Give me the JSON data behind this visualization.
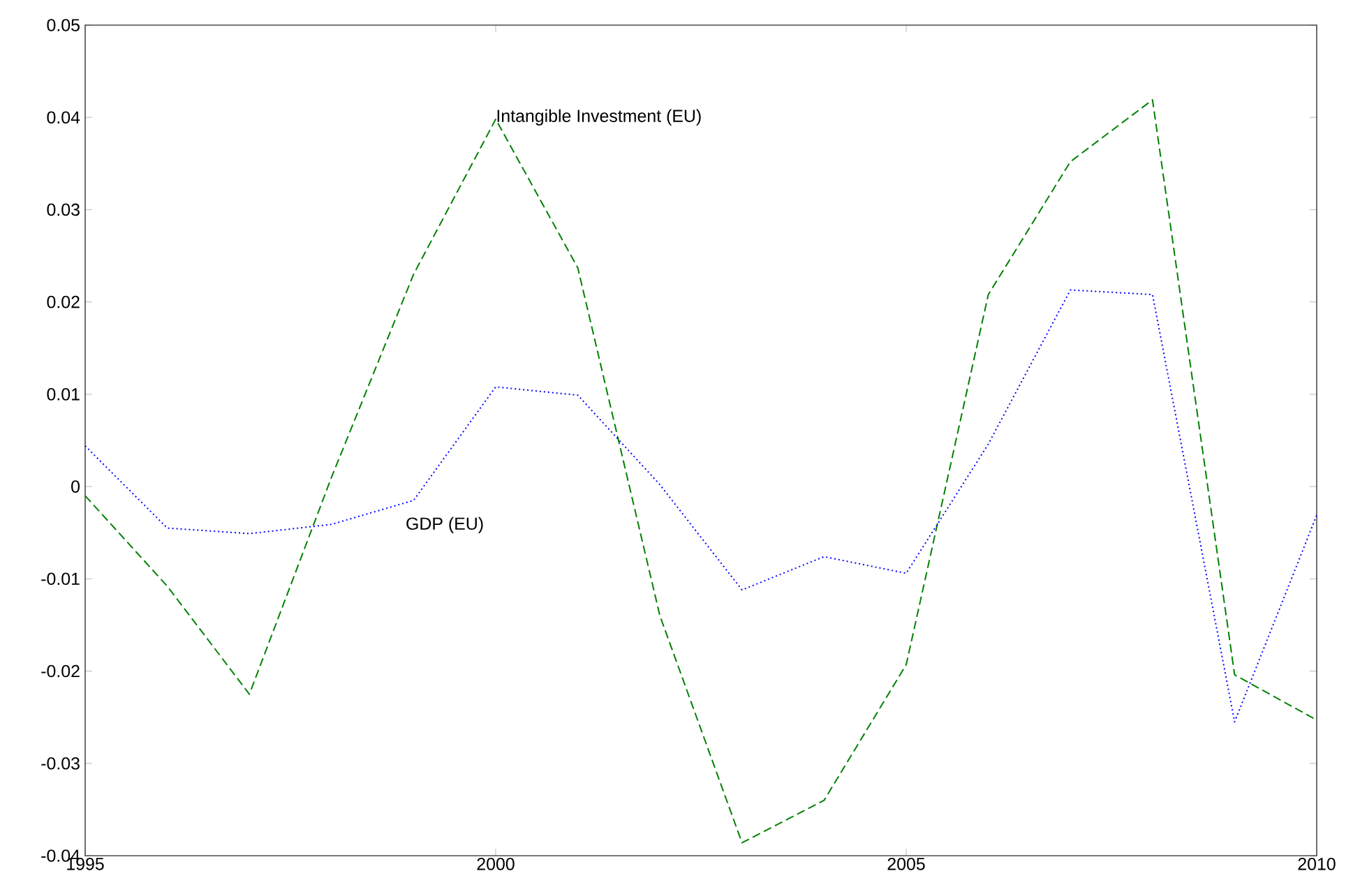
{
  "chart_data": {
    "type": "line",
    "x": [
      1995,
      1996,
      1997,
      1998,
      1999,
      2000,
      2001,
      2002,
      2003,
      2004,
      2005,
      2006,
      2007,
      2008,
      2009,
      2010
    ],
    "series": [
      {
        "color": "#008000",
        "line_style": "dashed",
        "values": [
          -0.001,
          -0.0108,
          -0.0225,
          0.001,
          0.023,
          0.0398,
          0.0237,
          -0.014,
          -0.0386,
          -0.034,
          -0.0193,
          0.0208,
          0.0352,
          0.0419,
          -0.0204,
          -0.0253
        ]
      },
      {
        "color": "#0000ff",
        "line_style": "dotted",
        "values": [
          0.0044,
          -0.0045,
          -0.0051,
          -0.0041,
          -0.0015,
          0.0108,
          0.0099,
          0.0002,
          -0.0112,
          -0.0076,
          -0.0094,
          0.0046,
          0.0213,
          0.0208,
          -0.0255,
          -0.0031
        ]
      }
    ],
    "annotations": [
      {
        "text": "Intangible Investment (EU)",
        "x": 2000,
        "y": 0.04
      },
      "GDP (EU)"
    ],
    "xlim": [
      1995,
      2010
    ],
    "xticks": [
      1995,
      2000,
      2005,
      2010
    ],
    "ylim": [
      -0.04,
      0.05
    ],
    "yticks": [
      -0.04,
      -0.03,
      -0.02,
      -0.01,
      0,
      0.01,
      0.02,
      0.03,
      0.04,
      0.05
    ],
    "grid": false,
    "marker": "none"
  }
}
